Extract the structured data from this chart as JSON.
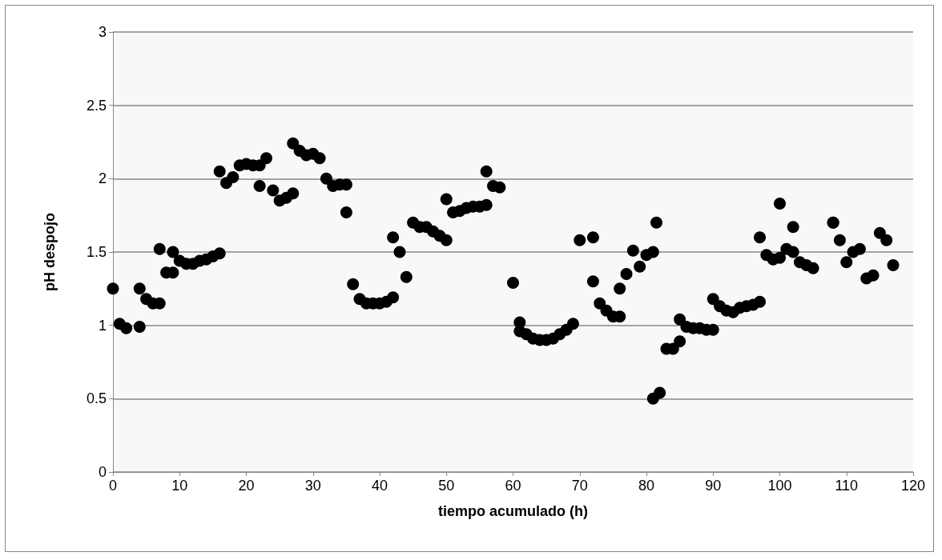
{
  "chart_data": {
    "type": "scatter",
    "xlabel": "tiempo acumulado (h)",
    "ylabel": "pH despojo",
    "xlim": [
      0,
      120
    ],
    "xticks": [
      0,
      10,
      20,
      30,
      40,
      50,
      60,
      70,
      80,
      90,
      100,
      110,
      120
    ],
    "ylim": [
      0,
      3
    ],
    "yticks": [
      0,
      0.5,
      1,
      1.5,
      2,
      2.5,
      3
    ],
    "grid": "y",
    "marker": "circle",
    "series": [
      {
        "color": "#000000",
        "x": [
          0,
          1,
          2,
          4,
          4,
          5,
          6,
          7,
          7,
          8,
          9,
          9,
          10,
          11,
          12,
          13,
          14,
          15,
          16,
          16,
          17,
          18,
          19,
          20,
          21,
          22,
          22,
          23,
          24,
          25,
          26,
          27,
          27,
          28,
          29,
          30,
          31,
          32,
          33,
          34,
          35,
          35,
          36,
          37,
          38,
          39,
          40,
          41,
          42,
          42,
          43,
          44,
          45,
          46,
          47,
          48,
          49,
          50,
          50,
          51,
          52,
          53,
          54,
          55,
          56,
          56,
          57,
          58,
          60,
          61,
          61,
          62,
          63,
          64,
          65,
          66,
          67,
          68,
          69,
          70,
          72,
          72,
          73,
          74,
          75,
          76,
          76,
          77,
          78,
          79,
          80,
          81,
          81.5,
          81,
          82,
          83,
          84,
          85,
          85,
          86,
          87,
          88,
          89,
          90,
          90,
          91,
          92,
          93,
          94,
          95,
          96,
          97,
          97,
          98,
          99,
          100,
          100,
          101,
          102,
          102,
          103,
          104,
          105,
          108,
          108,
          109,
          110,
          111,
          112,
          113,
          114,
          115,
          116,
          117
        ],
        "values": [
          1.25,
          1.01,
          0.98,
          0.99,
          1.25,
          1.18,
          1.15,
          1.15,
          1.52,
          1.36,
          1.36,
          1.5,
          1.44,
          1.42,
          1.42,
          1.44,
          1.45,
          1.47,
          1.49,
          2.05,
          1.97,
          2.01,
          2.09,
          2.1,
          2.09,
          2.09,
          1.95,
          2.14,
          1.92,
          1.85,
          1.87,
          1.9,
          2.24,
          2.19,
          2.16,
          2.17,
          2.14,
          2.0,
          1.95,
          1.96,
          1.96,
          1.77,
          1.28,
          1.18,
          1.15,
          1.15,
          1.15,
          1.16,
          1.19,
          1.6,
          1.5,
          1.33,
          1.7,
          1.67,
          1.67,
          1.64,
          1.61,
          1.58,
          1.86,
          1.77,
          1.78,
          1.8,
          1.81,
          1.81,
          1.82,
          2.05,
          1.95,
          1.94,
          1.29,
          1.02,
          0.96,
          0.94,
          0.91,
          0.9,
          0.9,
          0.91,
          0.94,
          0.97,
          1.01,
          1.58,
          1.6,
          1.3,
          1.15,
          1.1,
          1.06,
          1.06,
          1.25,
          1.35,
          1.51,
          1.4,
          1.48,
          1.5,
          1.7,
          0.5,
          0.54,
          0.84,
          0.84,
          0.89,
          1.04,
          0.99,
          0.98,
          0.98,
          0.97,
          0.97,
          1.18,
          1.13,
          1.1,
          1.09,
          1.12,
          1.13,
          1.14,
          1.16,
          1.6,
          1.48,
          1.45,
          1.46,
          1.83,
          1.52,
          1.5,
          1.67,
          1.43,
          1.41,
          1.39,
          1.7,
          1.7,
          1.58,
          1.43,
          1.5,
          1.52,
          1.32,
          1.34,
          1.63,
          1.58,
          1.41
        ]
      }
    ]
  }
}
